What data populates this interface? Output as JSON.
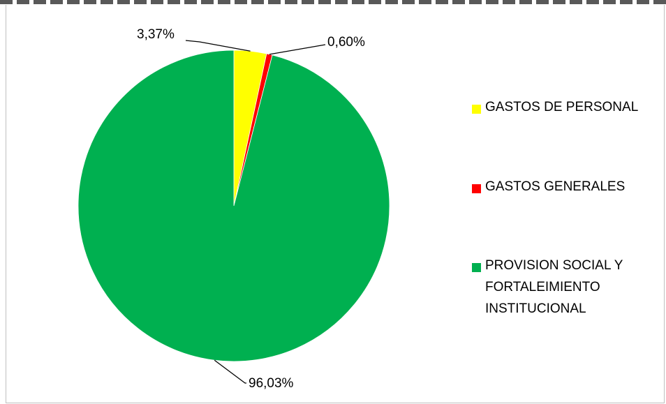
{
  "chart_data": {
    "type": "pie",
    "title": "",
    "start_angle_deg": 0,
    "direction": "clockwise",
    "slices": [
      {
        "name": "GASTOS DE PERSONAL",
        "value": 3.37,
        "label": "3,37%",
        "color": "#ffff00"
      },
      {
        "name": "GASTOS GENERALES",
        "value": 0.6,
        "label": "0,60%",
        "color": "#ff0000"
      },
      {
        "name": "PROVISION SOCIAL Y FORTALEIMIENTO INSTITUCIONAL",
        "value": 96.03,
        "label": "96,03%",
        "color": "#00b050"
      }
    ],
    "legend": {
      "placement": "right",
      "items": [
        {
          "label": "GASTOS DE PERSONAL",
          "color": "#ffff00"
        },
        {
          "label": "GASTOS GENERALES",
          "color": "#ff0000"
        },
        {
          "label": "PROVISION SOCIAL Y FORTALEIMIENTO INSTITUCIONAL",
          "color": "#00b050"
        }
      ]
    },
    "leader_line_color": "#000000",
    "border_color": "#bfbfbf",
    "top_stripe_colors": [
      "#595959",
      "#ffffff"
    ]
  }
}
